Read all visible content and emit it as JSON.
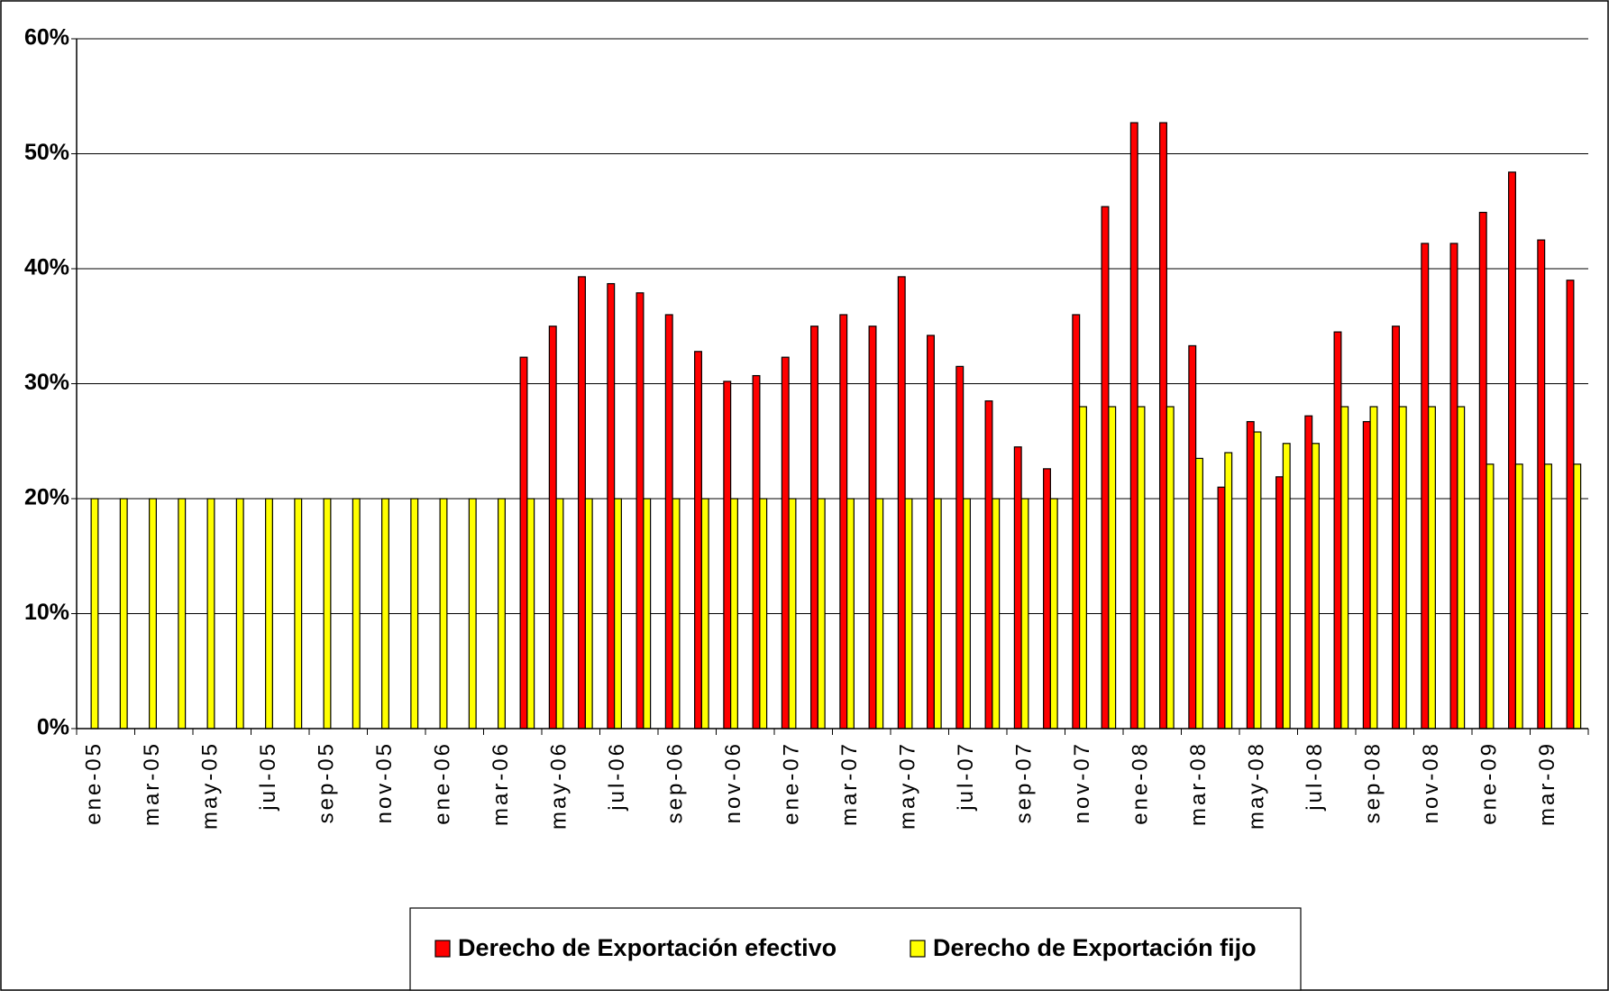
{
  "chart_data": {
    "type": "bar",
    "categories": [
      "ene-05",
      null,
      "mar-05",
      null,
      "may-05",
      null,
      "jul-05",
      null,
      "sep-05",
      null,
      "nov-05",
      null,
      "ene-06",
      null,
      "mar-06",
      null,
      "may-06",
      null,
      "jul-06",
      null,
      "sep-06",
      null,
      "nov-06",
      null,
      "ene-07",
      null,
      "mar-07",
      null,
      "may-07",
      null,
      "jul-07",
      null,
      "sep-07",
      null,
      "nov-07",
      null,
      "ene-08",
      null,
      "mar-08",
      null,
      "may-08",
      null,
      "jul-08",
      null,
      "sep-08",
      null,
      "nov-08",
      null,
      "ene-09",
      null,
      "mar-09",
      null
    ],
    "series": [
      {
        "name": "Derecho de Exportación efectivo",
        "color": "#ff0000",
        "values": [
          null,
          null,
          null,
          null,
          null,
          null,
          null,
          null,
          null,
          null,
          null,
          null,
          null,
          null,
          null,
          32.3,
          35,
          39.3,
          38.7,
          37.9,
          36,
          32.8,
          30.2,
          30.7,
          32.3,
          35,
          36,
          35,
          39.3,
          34.2,
          31.5,
          28.5,
          24.5,
          22.6,
          36,
          45.4,
          52.7,
          52.7,
          33.3,
          21,
          26.7,
          21.9,
          27.2,
          34.5,
          26.7,
          35,
          42.2,
          42.2,
          44.9,
          48.4,
          42.5,
          39
        ]
      },
      {
        "name": "Derecho de Exportación fijo",
        "color": "#ffff00",
        "values": [
          20,
          20,
          20,
          20,
          20,
          20,
          20,
          20,
          20,
          20,
          20,
          20,
          20,
          20,
          20,
          20,
          20,
          20,
          20,
          20,
          20,
          20,
          20,
          20,
          20,
          20,
          20,
          20,
          20,
          20,
          20,
          20,
          20,
          20,
          28,
          28,
          28,
          28,
          23.5,
          24,
          25.8,
          24.8,
          24.8,
          28,
          28,
          28,
          28,
          28,
          23,
          23,
          23,
          23
        ]
      }
    ],
    "ylim": [
      0,
      60
    ],
    "yticks": [
      {
        "value": 0,
        "label": "0%"
      },
      {
        "value": 10,
        "label": "10%"
      },
      {
        "value": 20,
        "label": "20%"
      },
      {
        "value": 30,
        "label": "30%"
      },
      {
        "value": 40,
        "label": "40%"
      },
      {
        "value": 50,
        "label": "50%"
      },
      {
        "value": 60,
        "label": "60%"
      }
    ],
    "grid": true,
    "legend": "bottom"
  }
}
